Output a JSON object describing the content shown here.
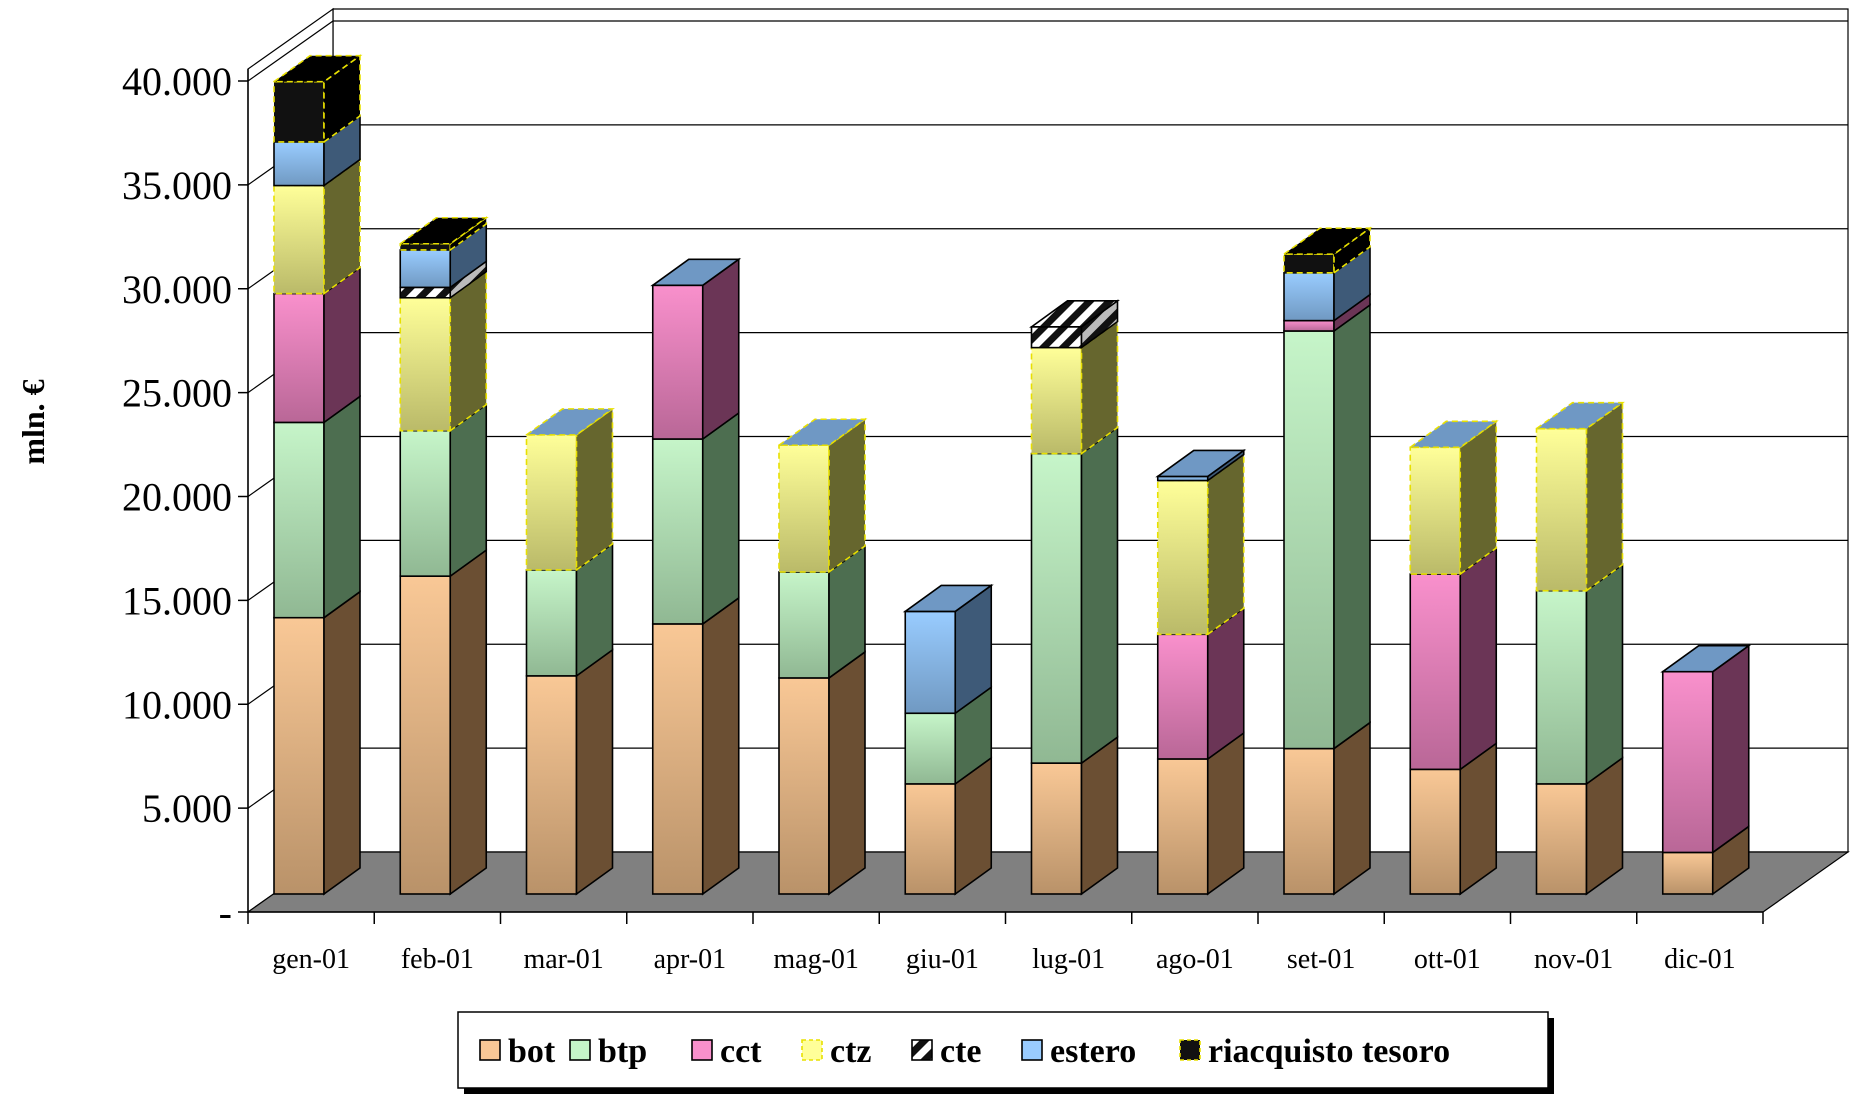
{
  "chart_data": {
    "type": "bar",
    "stacked": true,
    "three_d": true,
    "title": "",
    "xlabel": "",
    "ylabel": "mln. €",
    "ylim": [
      0,
      40000
    ],
    "y_ticks": [
      0,
      5000,
      10000,
      15000,
      20000,
      25000,
      30000,
      35000,
      40000
    ],
    "y_tick_labels": [
      "-",
      "5.000",
      "10.000",
      "15.000",
      "20.000",
      "25.000",
      "30.000",
      "35.000",
      "40.000"
    ],
    "grid": true,
    "legend_position": "bottom",
    "categories": [
      "gen-01",
      "feb-01",
      "mar-01",
      "apr-01",
      "mag-01",
      "giu-01",
      "lug-01",
      "ago-01",
      "set-01",
      "ott-01",
      "nov-01",
      "dic-01"
    ],
    "series": [
      {
        "name": "bot",
        "color": "#f9c896",
        "dark": "#6b4f33",
        "values": [
          13300,
          15300,
          10500,
          13000,
          10400,
          5300,
          6300,
          6500,
          7000,
          6000,
          5300,
          2000
        ]
      },
      {
        "name": "btp",
        "color": "#c6f5c9",
        "dark": "#4d6e50",
        "values": [
          9400,
          7000,
          5100,
          8900,
          5100,
          3400,
          14900,
          0,
          20100,
          0,
          9300,
          0
        ]
      },
      {
        "name": "cct",
        "color": "#f990cc",
        "dark": "#6b3556",
        "values": [
          6200,
          0,
          0,
          7400,
          0,
          0,
          0,
          6000,
          500,
          9400,
          0,
          8700
        ]
      },
      {
        "name": "ctz",
        "color": "#ffff99",
        "dark": "#66662e",
        "values": [
          5200,
          6400,
          6500,
          0,
          6100,
          0,
          5100,
          7400,
          0,
          6100,
          7800,
          0
        ]
      },
      {
        "name": "cte",
        "color": "#ffffff",
        "dark": "#555555",
        "values": [
          0,
          500,
          0,
          0,
          0,
          0,
          1000,
          0,
          0,
          0,
          0,
          0
        ]
      },
      {
        "name": "estero",
        "color": "#99ccff",
        "dark": "#3e5a78",
        "values": [
          2100,
          1800,
          0,
          0,
          0,
          4900,
          0,
          200,
          2300,
          0,
          0,
          0
        ]
      },
      {
        "name": "riacquisto tesoro",
        "color": "#111111",
        "dark": "#000000",
        "values": [
          2900,
          300,
          0,
          0,
          0,
          0,
          0,
          0,
          900,
          0,
          0,
          0
        ]
      }
    ]
  }
}
